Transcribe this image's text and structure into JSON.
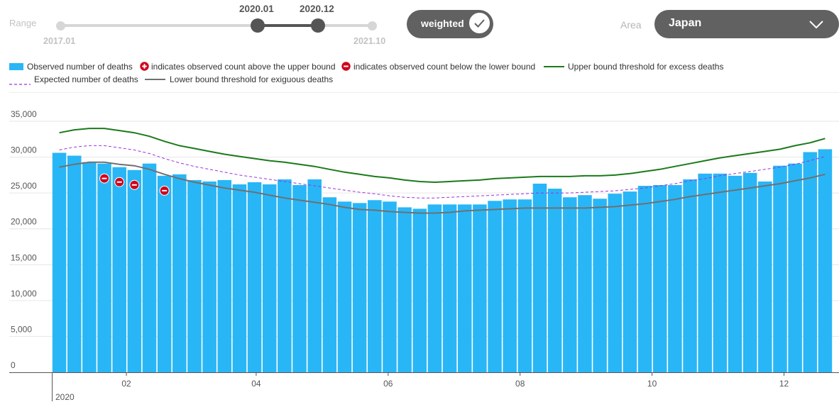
{
  "controls": {
    "range_label": "Range",
    "range_min": "2017.01",
    "range_max": "2021.10",
    "range_start": "2020.01",
    "range_end": "2020.12",
    "weighted_label": "weighted",
    "weighted_checked": true,
    "area_label": "Area",
    "area_value": "Japan"
  },
  "legend": {
    "observed": "Observed number of deaths",
    "above": "indicates observed count above the upper bound",
    "below": "indicates observed count below the lower bound",
    "upper": "Upper bound threshold for excess deaths",
    "expected": "Expected number of deaths",
    "lower": "Lower bound threshold for exiguous deaths"
  },
  "colors": {
    "bar": "#29b6f6",
    "upper": "#1b7a1b",
    "expected": "#9b30e0",
    "lower": "#707070",
    "below_marker": "#d0021b",
    "control_bg": "#616161"
  },
  "chart_data": {
    "type": "bar",
    "ylim": [
      0,
      35000
    ],
    "yticks": [
      "0",
      "5,000",
      "10,000",
      "15,000",
      "20,000",
      "25,000",
      "30,000",
      "35,000"
    ],
    "xtick_labels": [
      "02",
      "04",
      "06",
      "08",
      "10",
      "12"
    ],
    "year_label": "2020",
    "week_start": "2020-01-01",
    "week_end": "2020-12-20",
    "tick_dates": [
      "2020-02-01",
      "2020-04-01",
      "2020-06-01",
      "2020-08-01",
      "2020-10-01",
      "2020-12-01"
    ],
    "observed": [
      30600,
      30200,
      29300,
      29100,
      28600,
      28200,
      29100,
      27400,
      27600,
      26800,
      26600,
      26800,
      26200,
      26500,
      26200,
      26900,
      26100,
      26900,
      24400,
      23800,
      23600,
      24000,
      23800,
      23000,
      22800,
      23400,
      23400,
      23400,
      23400,
      23900,
      24100,
      24100,
      26300,
      25600,
      24400,
      24700,
      24200,
      24900,
      25200,
      26000,
      26100,
      26100,
      26900,
      27700,
      27700,
      27400,
      27800,
      26600,
      28800,
      29100,
      30700,
      31100
    ],
    "upper": [
      33400,
      33800,
      34000,
      34000,
      33700,
      33400,
      32900,
      32200,
      31600,
      31200,
      30800,
      30400,
      30100,
      29800,
      29500,
      29300,
      29000,
      28700,
      28300,
      27900,
      27600,
      27300,
      27100,
      26800,
      26600,
      26500,
      26600,
      26700,
      26800,
      27000,
      27100,
      27200,
      27300,
      27300,
      27300,
      27400,
      27400,
      27500,
      27700,
      28000,
      28300,
      28700,
      29100,
      29500,
      29900,
      30200,
      30500,
      30800,
      31100,
      31600,
      32000,
      32600
    ],
    "expected": [
      31000,
      31400,
      31600,
      31600,
      31300,
      31000,
      30500,
      29800,
      29200,
      28700,
      28300,
      27900,
      27500,
      27200,
      26900,
      26600,
      26300,
      26000,
      25700,
      25400,
      25100,
      24900,
      24600,
      24400,
      24300,
      24300,
      24400,
      24500,
      24600,
      24700,
      24800,
      24900,
      25000,
      25000,
      25000,
      25100,
      25200,
      25300,
      25500,
      25700,
      26000,
      26300,
      26700,
      27000,
      27400,
      27700,
      28000,
      28300,
      28600,
      29000,
      29500,
      30100
    ],
    "lower": [
      28600,
      29000,
      29300,
      29300,
      29000,
      28800,
      28300,
      27600,
      27000,
      26500,
      26100,
      25700,
      25400,
      25100,
      24700,
      24300,
      24000,
      23700,
      23400,
      23000,
      22700,
      22600,
      22400,
      22300,
      22200,
      22200,
      22300,
      22500,
      22600,
      22700,
      22800,
      22900,
      22900,
      22900,
      22900,
      22900,
      23000,
      23100,
      23300,
      23500,
      23800,
      24100,
      24500,
      24800,
      25100,
      25400,
      25700,
      26000,
      26300,
      26700,
      27100,
      27600
    ],
    "below_markers": [
      3,
      4,
      5,
      7
    ],
    "above_markers": []
  }
}
